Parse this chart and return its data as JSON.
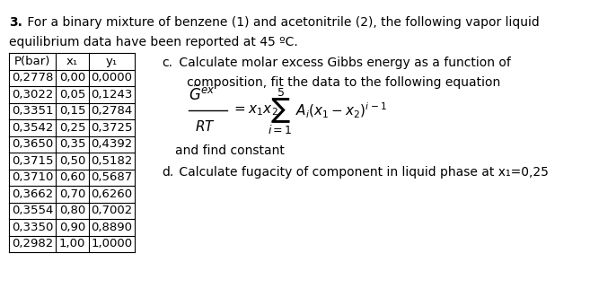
{
  "title_bold": "3.",
  "title_text": " For a binary mixture of benzene (1) and acetonitrile (2), the following vapor liquid\nequilibrium data have been reported at 45 ºC.",
  "table_headers": [
    "P(bar)",
    "x₁",
    "y₁"
  ],
  "table_data": [
    [
      "0,2778",
      "0,00",
      "0,0000"
    ],
    [
      "0,3022",
      "0,05",
      "0,1243"
    ],
    [
      "0,3351",
      "0,15",
      "0,2784"
    ],
    [
      "0,3542",
      "0,25",
      "0,3725"
    ],
    [
      "0,3650",
      "0,35",
      "0,4392"
    ],
    [
      "0,3715",
      "0,50",
      "0,5182"
    ],
    [
      "0,3710",
      "0,60",
      "0,5687"
    ],
    [
      "0,3662",
      "0,70",
      "0,6260"
    ],
    [
      "0,3554",
      "0,80",
      "0,7002"
    ],
    [
      "0,3350",
      "0,90",
      "0,8890"
    ],
    [
      "0,2982",
      "1,00",
      "1,0000"
    ]
  ],
  "part_c_label": "c.",
  "part_c_text": " Calculate molar excess Gibbs energy as a function of\n   composition, fit the data to the following equation",
  "and_find": "and find constant",
  "part_d_label": "d.",
  "part_d_text": " Calculate fugacity of component in liquid phase at x₁=0,25",
  "bg_color": "#ffffff",
  "text_color": "#000000",
  "font_size": 10,
  "table_font_size": 9.5
}
